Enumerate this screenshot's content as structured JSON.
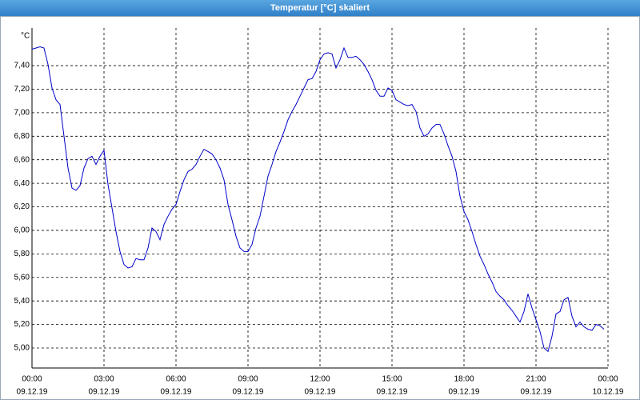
{
  "chart_data": {
    "type": "line",
    "title": "Temperatur [°C] skaliert",
    "y_unit": "°C",
    "color": "#0000cc",
    "x": [
      0,
      10,
      20,
      30,
      40,
      50,
      60,
      70,
      80,
      90,
      100,
      110,
      120,
      130,
      140,
      150,
      160,
      170,
      180,
      190,
      200,
      210,
      220,
      230,
      240,
      250,
      260,
      270,
      280,
      290,
      300,
      310,
      320,
      330,
      340,
      350,
      360,
      370,
      380,
      390,
      400,
      410,
      420,
      430,
      440,
      450,
      460,
      470,
      480,
      490,
      500,
      510,
      520,
      530,
      540,
      550,
      560,
      570,
      580,
      590,
      600,
      610,
      620,
      630,
      640,
      650,
      660,
      670,
      680,
      690,
      700,
      710,
      720,
      730,
      740,
      750,
      760,
      770,
      780,
      790,
      800,
      810,
      820,
      830,
      840,
      850,
      860,
      870,
      880,
      890,
      900,
      910,
      920,
      930,
      940,
      950,
      960,
      970,
      980,
      990,
      1000,
      1010,
      1020,
      1030,
      1040,
      1050,
      1060,
      1070,
      1080,
      1090,
      1100,
      1110,
      1120,
      1130,
      1140,
      1150,
      1160,
      1170,
      1180,
      1190,
      1200,
      1210,
      1220,
      1230,
      1240,
      1250,
      1260,
      1270,
      1280,
      1290,
      1300,
      1310,
      1320,
      1330,
      1340,
      1350,
      1360,
      1370,
      1380,
      1390,
      1400,
      1410,
      1420,
      1430
    ],
    "values": [
      7.54,
      7.55,
      7.56,
      7.55,
      7.41,
      7.21,
      7.11,
      7.07,
      6.8,
      6.53,
      6.36,
      6.34,
      6.38,
      6.53,
      6.61,
      6.63,
      6.56,
      6.63,
      6.68,
      6.39,
      6.19,
      5.99,
      5.82,
      5.71,
      5.68,
      5.69,
      5.76,
      5.75,
      5.75,
      5.85,
      6.02,
      5.99,
      5.92,
      6.05,
      6.12,
      6.18,
      6.22,
      6.33,
      6.43,
      6.5,
      6.52,
      6.56,
      6.63,
      6.69,
      6.67,
      6.65,
      6.6,
      6.53,
      6.43,
      6.22,
      6.09,
      5.95,
      5.85,
      5.82,
      5.82,
      5.88,
      6.02,
      6.12,
      6.29,
      6.46,
      6.56,
      6.67,
      6.75,
      6.84,
      6.94,
      7.01,
      7.07,
      7.14,
      7.21,
      7.28,
      7.29,
      7.35,
      7.45,
      7.5,
      7.51,
      7.5,
      7.38,
      7.45,
      7.55,
      7.47,
      7.47,
      7.48,
      7.45,
      7.41,
      7.35,
      7.28,
      7.19,
      7.14,
      7.14,
      7.21,
      7.19,
      7.11,
      7.09,
      7.07,
      7.06,
      7.07,
      7.01,
      6.87,
      6.8,
      6.82,
      6.87,
      6.9,
      6.9,
      6.82,
      6.72,
      6.63,
      6.5,
      6.29,
      6.16,
      6.09,
      5.99,
      5.88,
      5.78,
      5.71,
      5.63,
      5.56,
      5.48,
      5.44,
      5.41,
      5.36,
      5.32,
      5.27,
      5.22,
      5.31,
      5.46,
      5.34,
      5.24,
      5.14,
      5.0,
      4.97,
      5.1,
      5.29,
      5.31,
      5.41,
      5.43,
      5.27,
      5.18,
      5.22,
      5.18,
      5.16,
      5.15,
      5.2,
      5.19,
      5.16
    ],
    "xlim": [
      0,
      1440
    ],
    "xticks": [
      {
        "value": 0,
        "label": "00:00"
      },
      {
        "value": 180,
        "label": "03:00"
      },
      {
        "value": 360,
        "label": "06:00"
      },
      {
        "value": 540,
        "label": "09:00"
      },
      {
        "value": 720,
        "label": "12:00"
      },
      {
        "value": 900,
        "label": "15:00"
      },
      {
        "value": 1080,
        "label": "18:00"
      },
      {
        "value": 1260,
        "label": "21:00"
      },
      {
        "value": 1440,
        "label": "00:00"
      }
    ],
    "xtick_dates": [
      "09.12.19",
      "09.12.19",
      "09.12.19",
      "09.12.19",
      "09.12.19",
      "09.12.19",
      "09.12.19",
      "09.12.19",
      "10.12.19"
    ],
    "ylim": [
      4.83,
      7.72
    ],
    "yticks": [
      {
        "value": 5.0,
        "label": "5,00"
      },
      {
        "value": 5.2,
        "label": "5,20"
      },
      {
        "value": 5.4,
        "label": "5,40"
      },
      {
        "value": 5.6,
        "label": "5,60"
      },
      {
        "value": 5.8,
        "label": "5,80"
      },
      {
        "value": 6.0,
        "label": "6,00"
      },
      {
        "value": 6.2,
        "label": "6,20"
      },
      {
        "value": 6.4,
        "label": "6,40"
      },
      {
        "value": 6.6,
        "label": "6,60"
      },
      {
        "value": 6.8,
        "label": "6,80"
      },
      {
        "value": 7.0,
        "label": "7,00"
      },
      {
        "value": 7.2,
        "label": "7,20"
      },
      {
        "value": 7.4,
        "label": "7,40"
      }
    ],
    "grid": true
  }
}
